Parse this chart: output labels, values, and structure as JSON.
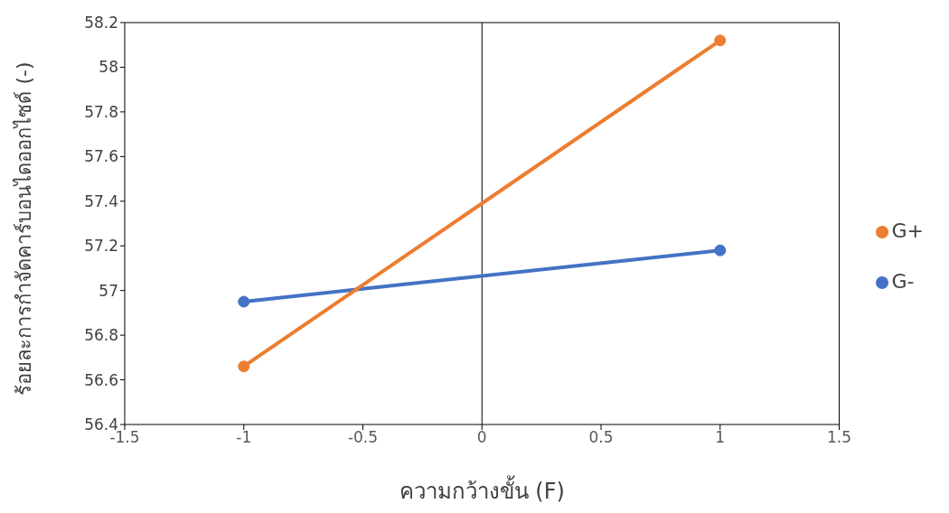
{
  "chart_data": {
    "type": "line",
    "xlabel": "ความกว้างขั้น (F)",
    "ylabel": "ร้อยละการกำจัดคาร์บอนไดออกไซด์ (-)",
    "x": [
      -1,
      1
    ],
    "series": [
      {
        "name": "G-",
        "color": "#4472c4",
        "values": [
          56.95,
          57.18
        ]
      },
      {
        "name": "G+",
        "color": "#ed7d31",
        "values": [
          56.66,
          58.12
        ]
      }
    ],
    "xlim": [
      -1.5,
      1.5
    ],
    "xticks": [
      -1.5,
      -1,
      -0.5,
      0,
      0.5,
      1,
      1.5
    ],
    "ylim": [
      56.4,
      58.2
    ],
    "yticks": [
      56.4,
      56.6,
      56.8,
      57,
      57.2,
      57.4,
      57.6,
      57.8,
      58,
      58.2
    ],
    "ref_lines": [
      {
        "axis": "x",
        "value": 0
      }
    ],
    "grid": false,
    "legend": "right",
    "marker": "circle",
    "line_style": "solid"
  }
}
